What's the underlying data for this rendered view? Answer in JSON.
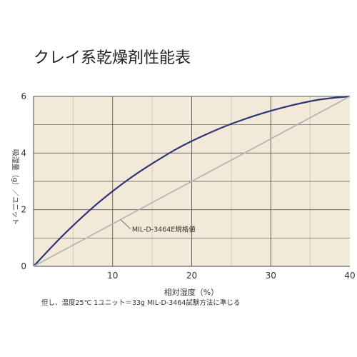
{
  "chart_data": {
    "type": "line",
    "title": "クレイ系乾燥剤性能表",
    "xlabel": "相対湿度（%）",
    "ylabel": "吸湿量（g）／ユニット",
    "footnote": "但し、温度25℃ 1ユニット＝33g MIL-D-3464試験方法に準じる",
    "xlim": [
      0,
      40
    ],
    "ylim": [
      0,
      6
    ],
    "x_ticks": [
      "10",
      "20",
      "30",
      "40"
    ],
    "y_ticks": [
      "0",
      "2",
      "4",
      "6"
    ],
    "grid": true,
    "background_color": "#f3e9d9",
    "series": [
      {
        "name": "",
        "color": "#2e3578",
        "x": [
          0,
          2,
          4,
          6,
          8,
          10,
          12,
          14,
          16,
          18,
          20,
          22,
          24,
          26,
          28,
          30,
          32,
          34,
          36,
          38,
          40
        ],
        "y": [
          0,
          0.6,
          1.17,
          1.7,
          2.2,
          2.65,
          3.07,
          3.45,
          3.8,
          4.13,
          4.42,
          4.68,
          4.92,
          5.13,
          5.32,
          5.49,
          5.64,
          5.77,
          5.88,
          5.95,
          6.0
        ]
      },
      {
        "name": "MIL-D-3464E規格値",
        "color": "#b5b5b5",
        "x": [
          0,
          40
        ],
        "y": [
          0,
          6
        ]
      }
    ],
    "annotation": {
      "text": "MIL-D-3464E規格値",
      "points_to": [
        11,
        1.65
      ]
    }
  }
}
